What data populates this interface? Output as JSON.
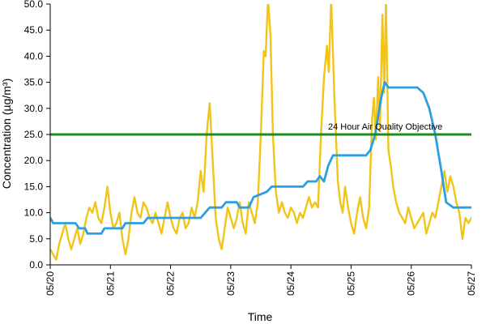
{
  "chart_data": {
    "type": "line",
    "title": "",
    "xlabel": "Time",
    "ylabel": "Concentration (µg/m³)",
    "x_categories": [
      "05/20",
      "05/21",
      "05/22",
      "05/23",
      "05/24",
      "05/25",
      "05/26",
      "05/27"
    ],
    "xlim_days": [
      0,
      7
    ],
    "ylim": [
      0,
      50
    ],
    "y_ticks": [
      "0.0",
      "5.0",
      "10.0",
      "15.0",
      "20.0",
      "25.0",
      "30.0",
      "35.0",
      "40.0",
      "45.0",
      "50.0"
    ],
    "grid": false,
    "legend": "none",
    "annotation": {
      "text": "24 Hour Air Quality Objective",
      "value": 25
    },
    "series": [
      {
        "color": "#f2c418",
        "style": "hourly",
        "points": [
          [
            0.0,
            3.0
          ],
          [
            0.05,
            2.0
          ],
          [
            0.1,
            1.0
          ],
          [
            0.15,
            4.0
          ],
          [
            0.2,
            6.0
          ],
          [
            0.25,
            8.0
          ],
          [
            0.3,
            5.0
          ],
          [
            0.35,
            3.0
          ],
          [
            0.4,
            5.0
          ],
          [
            0.45,
            7.0
          ],
          [
            0.5,
            4.0
          ],
          [
            0.55,
            6.0
          ],
          [
            0.6,
            9.0
          ],
          [
            0.65,
            11.0
          ],
          [
            0.7,
            10.0
          ],
          [
            0.75,
            12.0
          ],
          [
            0.8,
            9.0
          ],
          [
            0.85,
            8.0
          ],
          [
            0.9,
            11.0
          ],
          [
            0.95,
            15.0
          ],
          [
            1.0,
            10.0
          ],
          [
            1.05,
            7.0
          ],
          [
            1.1,
            8.0
          ],
          [
            1.15,
            10.0
          ],
          [
            1.2,
            5.0
          ],
          [
            1.25,
            2.0
          ],
          [
            1.3,
            5.0
          ],
          [
            1.35,
            10.0
          ],
          [
            1.4,
            13.0
          ],
          [
            1.45,
            10.0
          ],
          [
            1.5,
            9.0
          ],
          [
            1.55,
            12.0
          ],
          [
            1.6,
            11.0
          ],
          [
            1.65,
            9.0
          ],
          [
            1.7,
            8.0
          ],
          [
            1.75,
            10.0
          ],
          [
            1.8,
            8.0
          ],
          [
            1.85,
            6.0
          ],
          [
            1.9,
            9.0
          ],
          [
            1.95,
            12.0
          ],
          [
            2.0,
            9.0
          ],
          [
            2.05,
            7.0
          ],
          [
            2.1,
            6.0
          ],
          [
            2.15,
            9.0
          ],
          [
            2.2,
            10.0
          ],
          [
            2.25,
            7.0
          ],
          [
            2.3,
            8.0
          ],
          [
            2.35,
            11.0
          ],
          [
            2.4,
            9.0
          ],
          [
            2.45,
            12.0
          ],
          [
            2.5,
            18.0
          ],
          [
            2.55,
            14.0
          ],
          [
            2.6,
            25.0
          ],
          [
            2.65,
            31.0
          ],
          [
            2.7,
            20.0
          ],
          [
            2.75,
            9.0
          ],
          [
            2.8,
            5.0
          ],
          [
            2.85,
            3.0
          ],
          [
            2.9,
            7.0
          ],
          [
            2.95,
            11.0
          ],
          [
            3.0,
            9.0
          ],
          [
            3.05,
            7.0
          ],
          [
            3.1,
            9.0
          ],
          [
            3.15,
            12.0
          ],
          [
            3.2,
            8.0
          ],
          [
            3.25,
            6.0
          ],
          [
            3.3,
            12.0
          ],
          [
            3.35,
            10.0
          ],
          [
            3.4,
            8.0
          ],
          [
            3.45,
            12.0
          ],
          [
            3.5,
            25.0
          ],
          [
            3.55,
            41.0
          ],
          [
            3.58,
            40.0
          ],
          [
            3.62,
            51.0
          ],
          [
            3.66,
            44.0
          ],
          [
            3.7,
            25.0
          ],
          [
            3.75,
            14.0
          ],
          [
            3.8,
            10.0
          ],
          [
            3.85,
            12.0
          ],
          [
            3.9,
            10.0
          ],
          [
            3.95,
            9.0
          ],
          [
            4.0,
            11.0
          ],
          [
            4.05,
            10.0
          ],
          [
            4.1,
            8.0
          ],
          [
            4.15,
            10.0
          ],
          [
            4.2,
            9.0
          ],
          [
            4.25,
            11.0
          ],
          [
            4.3,
            13.0
          ],
          [
            4.35,
            11.0
          ],
          [
            4.4,
            12.0
          ],
          [
            4.45,
            11.0
          ],
          [
            4.5,
            25.0
          ],
          [
            4.55,
            36.0
          ],
          [
            4.6,
            42.0
          ],
          [
            4.63,
            37.0
          ],
          [
            4.67,
            51.0
          ],
          [
            4.72,
            33.0
          ],
          [
            4.78,
            16.0
          ],
          [
            4.82,
            12.0
          ],
          [
            4.86,
            10.0
          ],
          [
            4.9,
            15.0
          ],
          [
            4.95,
            11.0
          ],
          [
            5.0,
            8.0
          ],
          [
            5.05,
            6.0
          ],
          [
            5.1,
            10.0
          ],
          [
            5.15,
            13.0
          ],
          [
            5.2,
            9.0
          ],
          [
            5.25,
            7.0
          ],
          [
            5.3,
            11.0
          ],
          [
            5.35,
            28.0
          ],
          [
            5.38,
            32.0
          ],
          [
            5.41,
            24.0
          ],
          [
            5.45,
            36.0
          ],
          [
            5.48,
            26.0
          ],
          [
            5.52,
            48.0
          ],
          [
            5.55,
            33.0
          ],
          [
            5.58,
            51.0
          ],
          [
            5.62,
            22.0
          ],
          [
            5.66,
            19.0
          ],
          [
            5.7,
            15.0
          ],
          [
            5.75,
            12.0
          ],
          [
            5.8,
            10.0
          ],
          [
            5.85,
            9.0
          ],
          [
            5.9,
            8.0
          ],
          [
            5.95,
            11.0
          ],
          [
            6.0,
            9.0
          ],
          [
            6.05,
            7.0
          ],
          [
            6.1,
            8.0
          ],
          [
            6.15,
            9.0
          ],
          [
            6.2,
            10.0
          ],
          [
            6.25,
            6.0
          ],
          [
            6.3,
            8.0
          ],
          [
            6.35,
            10.0
          ],
          [
            6.4,
            9.0
          ],
          [
            6.45,
            12.0
          ],
          [
            6.5,
            15.0
          ],
          [
            6.55,
            18.0
          ],
          [
            6.6,
            14.0
          ],
          [
            6.65,
            17.0
          ],
          [
            6.7,
            15.0
          ],
          [
            6.75,
            12.0
          ],
          [
            6.8,
            10.0
          ],
          [
            6.85,
            5.0
          ],
          [
            6.9,
            9.0
          ],
          [
            6.95,
            8.0
          ],
          [
            7.0,
            9.0
          ]
        ]
      },
      {
        "color": "#2b9fe3",
        "style": "24-hour running average",
        "points": [
          [
            0.0,
            9.0
          ],
          [
            0.05,
            8.0
          ],
          [
            0.42,
            8.0
          ],
          [
            0.48,
            7.0
          ],
          [
            0.58,
            7.0
          ],
          [
            0.62,
            6.0
          ],
          [
            0.85,
            6.0
          ],
          [
            0.9,
            7.0
          ],
          [
            1.2,
            7.0
          ],
          [
            1.25,
            8.0
          ],
          [
            1.55,
            8.0
          ],
          [
            1.62,
            9.0
          ],
          [
            2.5,
            9.0
          ],
          [
            2.65,
            11.0
          ],
          [
            2.85,
            11.0
          ],
          [
            2.92,
            12.0
          ],
          [
            3.1,
            12.0
          ],
          [
            3.15,
            11.0
          ],
          [
            3.3,
            11.0
          ],
          [
            3.38,
            13.0
          ],
          [
            3.6,
            14.0
          ],
          [
            3.68,
            15.0
          ],
          [
            4.2,
            15.0
          ],
          [
            4.28,
            16.0
          ],
          [
            4.42,
            16.0
          ],
          [
            4.48,
            17.0
          ],
          [
            4.55,
            16.0
          ],
          [
            4.62,
            19.0
          ],
          [
            4.7,
            21.0
          ],
          [
            5.25,
            21.0
          ],
          [
            5.32,
            22.0
          ],
          [
            5.4,
            25.0
          ],
          [
            5.5,
            32.0
          ],
          [
            5.56,
            35.0
          ],
          [
            5.62,
            34.0
          ],
          [
            6.1,
            34.0
          ],
          [
            6.2,
            33.0
          ],
          [
            6.3,
            30.0
          ],
          [
            6.4,
            25.0
          ],
          [
            6.5,
            18.0
          ],
          [
            6.58,
            12.0
          ],
          [
            6.7,
            11.0
          ],
          [
            7.0,
            11.0
          ]
        ]
      }
    ],
    "reference_line": {
      "color": "#1e8c1e",
      "value": 25
    }
  }
}
